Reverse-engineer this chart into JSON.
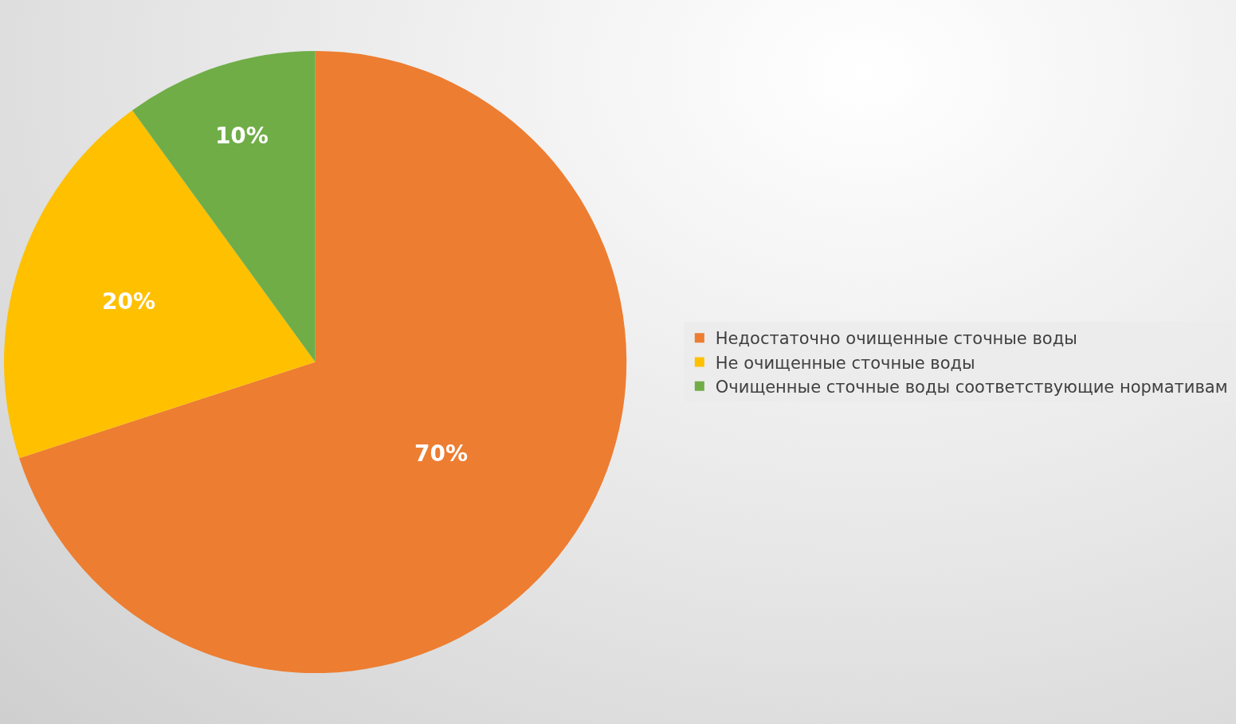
{
  "chart_data": {
    "type": "pie",
    "categories": [
      "Недостаточно очищенные сточные воды",
      "Не очищенные сточные воды",
      "Очищенные сточные воды соответствующие нормативам"
    ],
    "values": [
      70,
      20,
      10
    ],
    "colors": [
      "#ed7d31",
      "#ffc000",
      "#70ad47"
    ],
    "value_labels": [
      "70%",
      "20%",
      "10%"
    ],
    "legend": "right"
  }
}
